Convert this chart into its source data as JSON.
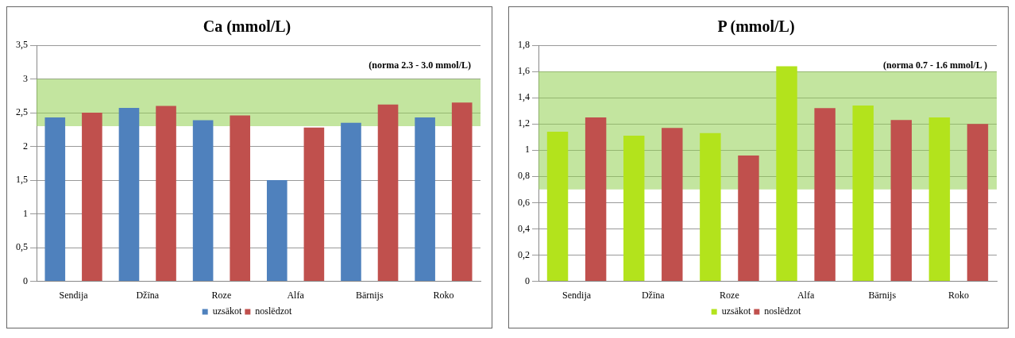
{
  "chart_data": [
    {
      "type": "bar",
      "title": "Ca (mmol/L)",
      "categories": [
        "Sendija",
        "Džīna",
        "Roze",
        "Alfa",
        "Bārnijs",
        "Roko"
      ],
      "series": [
        {
          "name": "uzsākot",
          "color": "#4f81bd",
          "values": [
            2.43,
            2.57,
            2.39,
            1.5,
            2.35,
            2.43
          ]
        },
        {
          "name": "noslēdzot",
          "color": "#c0504d",
          "values": [
            2.5,
            2.6,
            2.46,
            2.28,
            2.62,
            2.65
          ]
        }
      ],
      "ylim": [
        0,
        3.5
      ],
      "yticks": [
        {
          "value": 0,
          "label": "0"
        },
        {
          "value": 0.5,
          "label": "0,5"
        },
        {
          "value": 1,
          "label": "1"
        },
        {
          "value": 1.5,
          "label": "1,5"
        },
        {
          "value": 2,
          "label": "2"
        },
        {
          "value": 2.5,
          "label": "2,5"
        },
        {
          "value": 3,
          "label": "3"
        },
        {
          "value": 3.5,
          "label": "3,5"
        }
      ],
      "bands": [
        {
          "axis": "y",
          "from": 2.3,
          "to": 3.0,
          "label": "(norma 2.3 - 3.0 mmol/L)",
          "color": "#92d050"
        }
      ],
      "grid": "y",
      "legend": "bottom"
    },
    {
      "type": "bar",
      "title": "P (mmol/L)",
      "categories": [
        "Sendija",
        "Džīna",
        "Roze",
        "Alfa",
        "Bārnijs",
        "Roko"
      ],
      "series": [
        {
          "name": "uzsākot",
          "color": "#b3e31c",
          "values": [
            1.14,
            1.11,
            1.13,
            1.64,
            1.34,
            1.25
          ]
        },
        {
          "name": "noslēdzot",
          "color": "#c0504d",
          "values": [
            1.25,
            1.17,
            0.96,
            1.32,
            1.23,
            1.2
          ]
        }
      ],
      "ylim": [
        0,
        1.8
      ],
      "yticks": [
        {
          "value": 0,
          "label": "0"
        },
        {
          "value": 0.2,
          "label": "0,2"
        },
        {
          "value": 0.4,
          "label": "0,4"
        },
        {
          "value": 0.6,
          "label": "0,6"
        },
        {
          "value": 0.8,
          "label": "0,8"
        },
        {
          "value": 1,
          "label": "1"
        },
        {
          "value": 1.2,
          "label": "1,2"
        },
        {
          "value": 1.4,
          "label": "1,4"
        },
        {
          "value": 1.6,
          "label": "1,6"
        },
        {
          "value": 1.8,
          "label": "1,8"
        }
      ],
      "bands": [
        {
          "axis": "y",
          "from": 0.7,
          "to": 1.6,
          "label": "(norma 0.7 - 1.6 mmol/L )",
          "color": "#92d050"
        }
      ],
      "grid": "y",
      "legend": "bottom"
    }
  ]
}
